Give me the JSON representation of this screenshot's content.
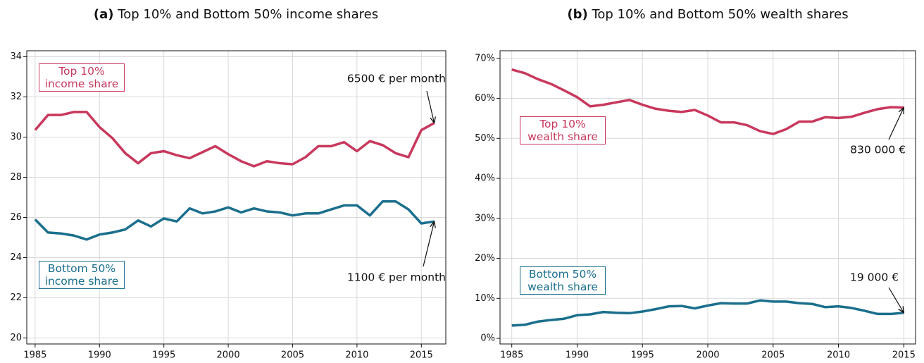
{
  "chart_data": [
    {
      "type": "line",
      "label": "(a)",
      "title": "Top 10% and Bottom 50% income shares",
      "x": [
        1985,
        1986,
        1987,
        1988,
        1989,
        1990,
        1991,
        1992,
        1993,
        1994,
        1995,
        1996,
        1997,
        1998,
        1999,
        2000,
        2001,
        2002,
        2003,
        2004,
        2005,
        2006,
        2007,
        2008,
        2009,
        2010,
        2011,
        2012,
        2013,
        2014,
        2015,
        2016
      ],
      "series": [
        {
          "name": "Top 10% income share",
          "color": "#c8385d",
          "values": [
            30.35,
            31.1,
            31.1,
            31.25,
            31.25,
            30.5,
            29.95,
            29.2,
            28.7,
            29.2,
            29.3,
            29.1,
            28.95,
            29.25,
            29.55,
            29.15,
            28.8,
            28.55,
            28.8,
            28.7,
            28.65,
            29.0,
            29.55,
            29.55,
            29.75,
            29.3,
            29.8,
            29.6,
            29.2,
            29.0,
            30.35,
            30.7
          ]
        },
        {
          "name": "Bottom 50% income share",
          "color": "#1b6f8d",
          "values": [
            25.9,
            25.25,
            25.2,
            25.1,
            24.9,
            25.15,
            25.25,
            25.4,
            25.85,
            25.55,
            25.95,
            25.8,
            26.45,
            26.2,
            26.3,
            26.5,
            26.25,
            26.45,
            26.3,
            26.25,
            26.1,
            26.2,
            26.2,
            26.4,
            26.6,
            26.6,
            26.1,
            26.8,
            26.8,
            26.4,
            25.7,
            25.8
          ]
        }
      ],
      "annotations": [
        "6500 € per month",
        "1100 € per month"
      ],
      "xlim": [
        1984.35,
        2016.9
      ],
      "xticks": [
        1985,
        1990,
        1995,
        2000,
        2005,
        2010,
        2015
      ],
      "ylim": [
        19.7,
        34.3
      ],
      "yticks": [
        20,
        22,
        24,
        26,
        28,
        30,
        32,
        34
      ],
      "grid": true
    },
    {
      "type": "line",
      "label": "(b)",
      "title": "Top 10% and Bottom 50% wealth shares",
      "x": [
        1985,
        1986,
        1987,
        1988,
        1989,
        1990,
        1991,
        1992,
        1993,
        1994,
        1995,
        1996,
        1997,
        1998,
        1999,
        2000,
        2001,
        2002,
        2003,
        2004,
        2005,
        2006,
        2007,
        2008,
        2009,
        2010,
        2011,
        2012,
        2013,
        2014,
        2015
      ],
      "series": [
        {
          "name": "Top 10% wealth share",
          "color": "#c8385d",
          "values": [
            67.2,
            66.3,
            64.8,
            63.6,
            62.0,
            60.3,
            58.0,
            58.4,
            59.0,
            59.6,
            58.4,
            57.4,
            56.9,
            56.6,
            57.1,
            55.7,
            54.0,
            54.0,
            53.3,
            51.8,
            51.1,
            52.3,
            54.2,
            54.2,
            55.3,
            55.1,
            55.4,
            56.4,
            57.3,
            57.8,
            57.7
          ]
        },
        {
          "name": "Bottom 50% wealth share",
          "color": "#1b6f8d",
          "values": [
            3.2,
            3.4,
            4.2,
            4.6,
            4.9,
            5.8,
            6.0,
            6.6,
            6.4,
            6.3,
            6.7,
            7.3,
            8.0,
            8.1,
            7.5,
            8.2,
            8.8,
            8.7,
            8.7,
            9.5,
            9.2,
            9.2,
            8.8,
            8.6,
            7.8,
            8.0,
            7.6,
            6.9,
            6.1,
            6.1,
            6.4
          ]
        }
      ],
      "annotations": [
        "830 000 €",
        "19 000 €"
      ],
      "xlim": [
        1984.1,
        2015.9
      ],
      "xticks": [
        1985,
        1990,
        1995,
        2000,
        2005,
        2010,
        2015
      ],
      "ylim": [
        -1.4,
        71.9
      ],
      "yticks": [
        {
          "value": 0,
          "label": "0%"
        },
        {
          "value": 10,
          "label": "10%"
        },
        {
          "value": 20,
          "label": "20%"
        },
        {
          "value": 30,
          "label": "30%"
        },
        {
          "value": 40,
          "label": "40%"
        },
        {
          "value": 50,
          "label": "50%"
        },
        {
          "value": 60,
          "label": "60%"
        },
        {
          "value": 70,
          "label": "70%"
        }
      ],
      "grid": true
    }
  ]
}
